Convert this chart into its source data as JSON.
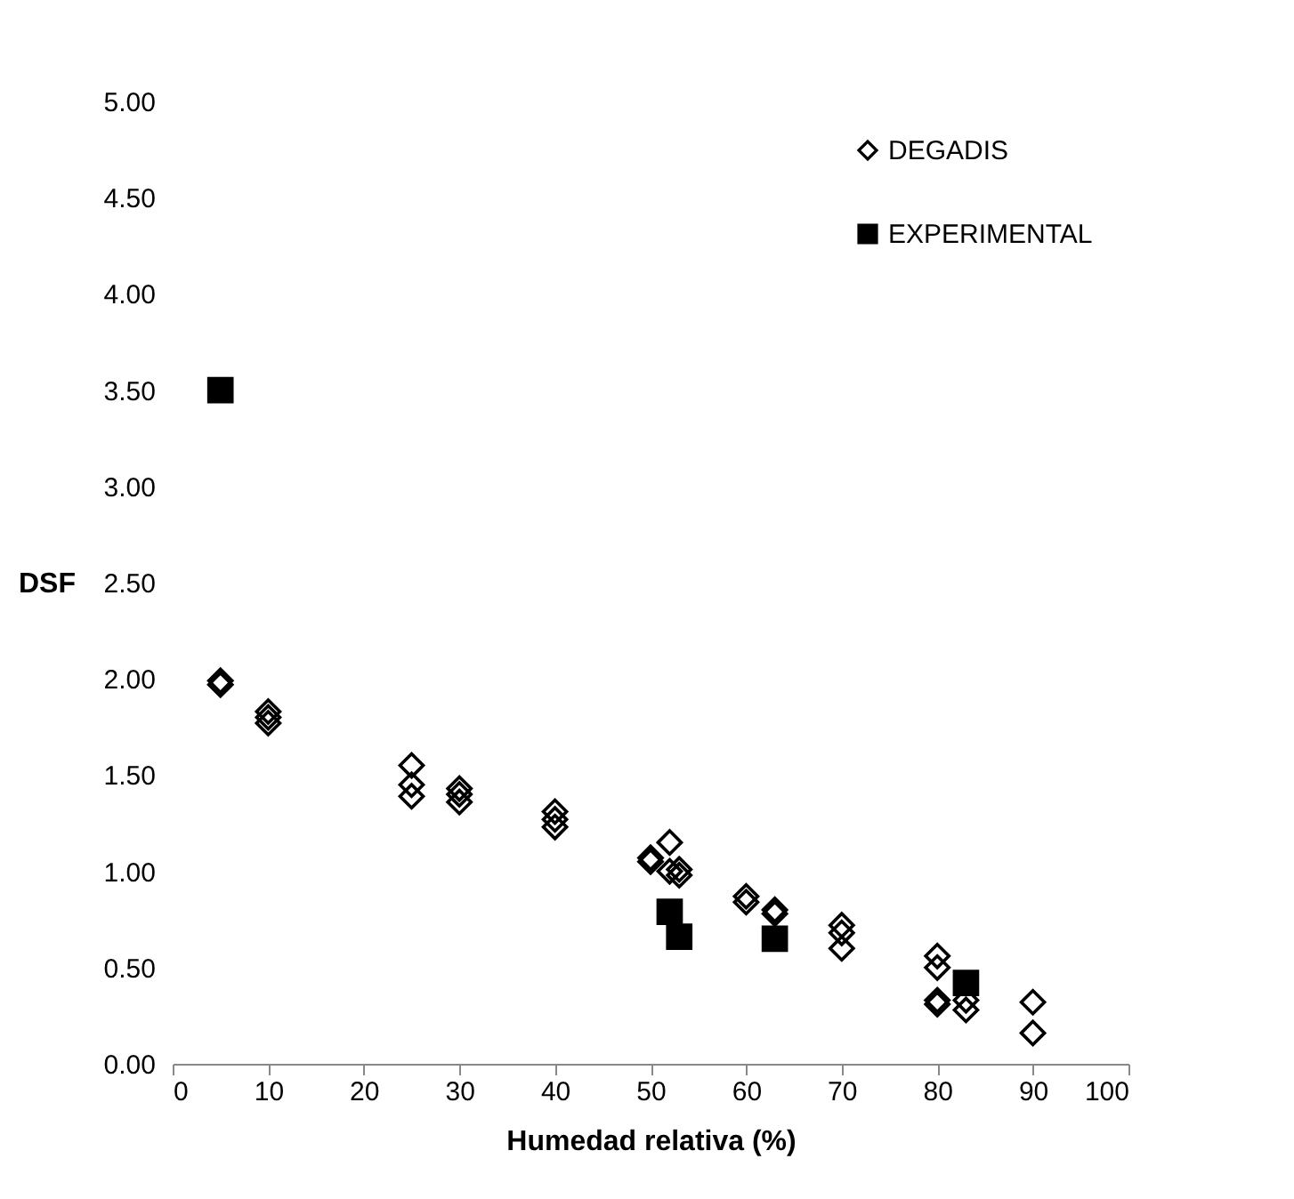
{
  "chart_data": {
    "type": "scatter",
    "xlabel": "Humedad relativa (%)",
    "ylabel": "DSF",
    "xlim": [
      0,
      100
    ],
    "ylim": [
      0,
      5
    ],
    "xticks": [
      0,
      10,
      20,
      30,
      40,
      50,
      60,
      70,
      80,
      90,
      100
    ],
    "yticks": [
      {
        "value": 0,
        "label": "0.00"
      },
      {
        "value": 0.5,
        "label": "0.50"
      },
      {
        "value": 1,
        "label": "1.00"
      },
      {
        "value": 1.5,
        "label": "1.50"
      },
      {
        "value": 2,
        "label": "2.00"
      },
      {
        "value": 2.5,
        "label": "2.50"
      },
      {
        "value": 3,
        "label": "3.00"
      },
      {
        "value": 3.5,
        "label": "3.50"
      },
      {
        "value": 4,
        "label": "4.00"
      },
      {
        "value": 4.5,
        "label": "4.50"
      },
      {
        "value": 5,
        "label": "5.00"
      }
    ],
    "legend": "top right",
    "grid": false,
    "series": [
      {
        "name": "DEGADIS",
        "color": "#000000",
        "marker": "diamond",
        "x": [
          5,
          5,
          10,
          10,
          10,
          25,
          25,
          25,
          30,
          30,
          30,
          40,
          40,
          40,
          50,
          50,
          52,
          52,
          53,
          53,
          60,
          60,
          63,
          63,
          70,
          70,
          70,
          80,
          80,
          80,
          80,
          83,
          83,
          90,
          90
        ],
        "values": [
          1.97,
          1.99,
          1.83,
          1.8,
          1.77,
          1.55,
          1.45,
          1.39,
          1.43,
          1.4,
          1.36,
          1.31,
          1.27,
          1.23,
          1.07,
          1.05,
          1.15,
          1.0,
          1.01,
          0.98,
          0.87,
          0.84,
          0.8,
          0.78,
          0.72,
          0.68,
          0.6,
          0.56,
          0.5,
          0.33,
          0.31,
          0.33,
          0.28,
          0.32,
          0.16
        ]
      },
      {
        "name": "EXPERIMENTAL",
        "color": "#000000",
        "marker": "square",
        "x": [
          5,
          52,
          53,
          63,
          83
        ],
        "values": [
          3.5,
          0.79,
          0.66,
          0.65,
          0.42
        ]
      }
    ]
  }
}
